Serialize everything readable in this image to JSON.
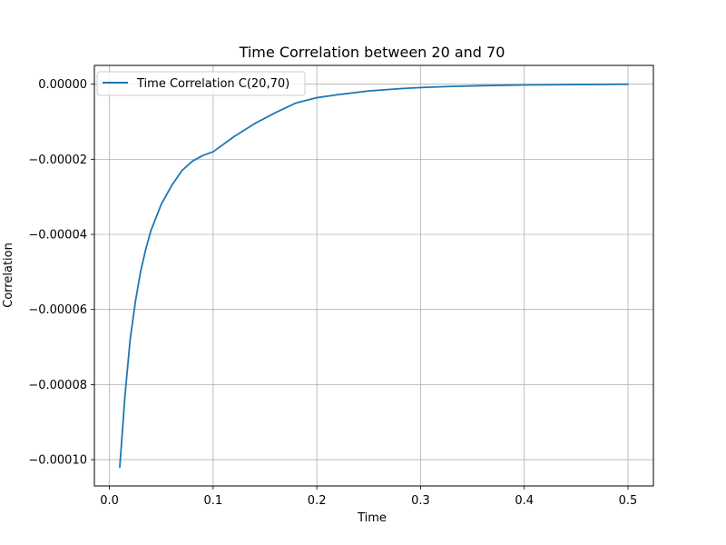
{
  "chart_data": {
    "type": "line",
    "title": "Time Correlation between 20 and 70",
    "xlabel": "Time",
    "ylabel": "Correlation",
    "xlim": [
      -0.0145,
      0.5245
    ],
    "ylim": [
      -0.000107,
      5e-06
    ],
    "xticks": [
      0.0,
      0.1,
      0.2,
      0.3,
      0.4,
      0.5
    ],
    "xtick_labels": [
      "0.0",
      "0.1",
      "0.2",
      "0.3",
      "0.4",
      "0.5"
    ],
    "yticks": [
      0.0,
      -2e-05,
      -4e-05,
      -6e-05,
      -8e-05,
      -0.0001
    ],
    "ytick_labels": [
      "0.00000",
      "−0.00002",
      "−0.00004",
      "−0.00006",
      "−0.00008",
      "−0.00010"
    ],
    "grid": true,
    "legend_position": "top-left",
    "series": [
      {
        "name": "Time Correlation C(20,70)",
        "color": "#1f77b4",
        "x": [
          0.01,
          0.015,
          0.02,
          0.025,
          0.03,
          0.035,
          0.04,
          0.05,
          0.06,
          0.07,
          0.08,
          0.09,
          0.1,
          0.12,
          0.14,
          0.16,
          0.18,
          0.2,
          0.22,
          0.25,
          0.28,
          0.3,
          0.33,
          0.36,
          0.4,
          0.45,
          0.5
        ],
        "y": [
          -0.000102,
          -8.3e-05,
          -6.8e-05,
          -5.8e-05,
          -5e-05,
          -4.4e-05,
          -3.9e-05,
          -3.2e-05,
          -2.7e-05,
          -2.3e-05,
          -2.05e-05,
          -1.9e-05,
          -1.8e-05,
          -1.4e-05,
          -1.05e-05,
          -7.6e-06,
          -5e-06,
          -3.6e-06,
          -2.8e-06,
          -1.8e-06,
          -1.2e-06,
          -9e-07,
          -6e-07,
          -4e-07,
          -2e-07,
          -1e-07,
          0.0
        ]
      }
    ]
  }
}
